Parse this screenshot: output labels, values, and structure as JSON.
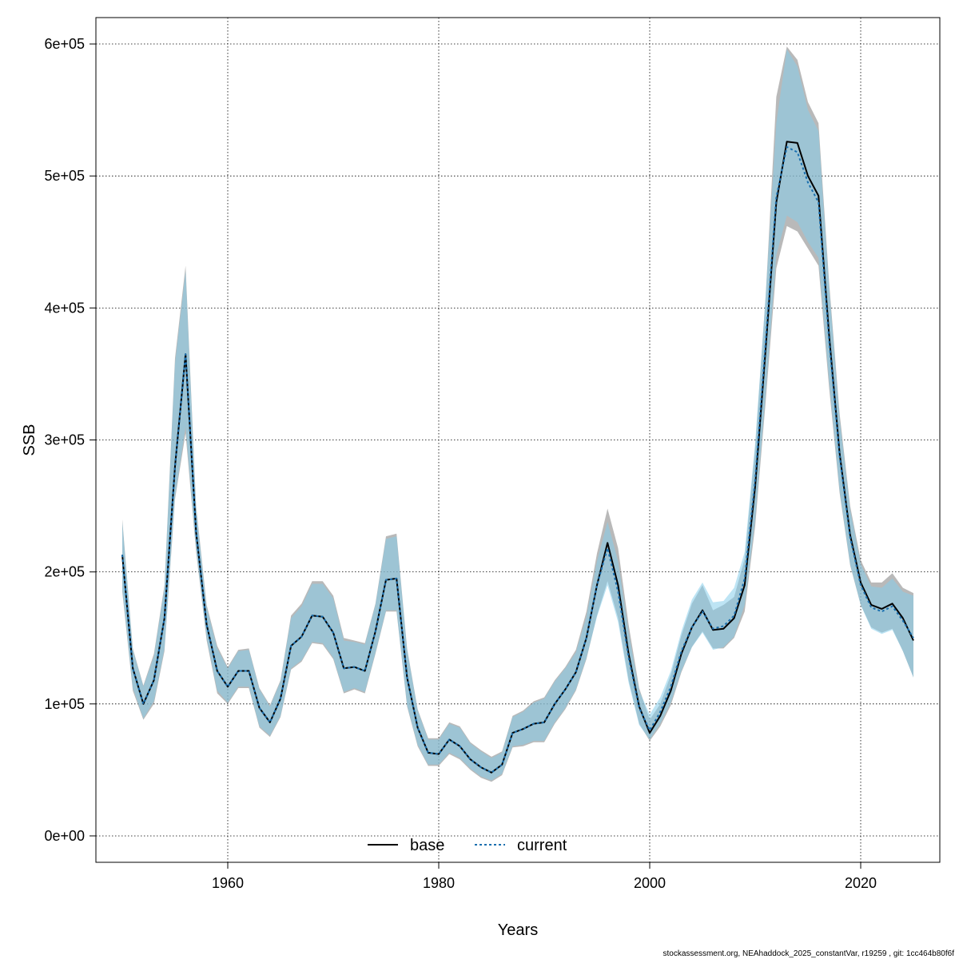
{
  "chart_data": {
    "type": "line",
    "title": "",
    "xlabel": "Years",
    "ylabel": "SSB",
    "xlim": [
      1947.5,
      2027.5
    ],
    "ylim": [
      -20000,
      620000
    ],
    "x_ticks": [
      1960,
      1980,
      2000,
      2020
    ],
    "x_tick_labels": [
      "1960",
      "1980",
      "2000",
      "2020"
    ],
    "y_ticks": [
      0,
      100000,
      200000,
      300000,
      400000,
      500000,
      600000
    ],
    "y_tick_labels": [
      "0e+00",
      "1e+05",
      "2e+05",
      "3e+05",
      "4e+05",
      "5e+05",
      "6e+05"
    ],
    "grid": true,
    "legend_position": "bottom",
    "x": [
      1950,
      1951,
      1952,
      1953,
      1954,
      1955,
      1956,
      1957,
      1958,
      1959,
      1960,
      1961,
      1962,
      1963,
      1964,
      1965,
      1966,
      1967,
      1968,
      1969,
      1970,
      1971,
      1972,
      1973,
      1974,
      1975,
      1976,
      1977,
      1978,
      1979,
      1980,
      1981,
      1982,
      1983,
      1984,
      1985,
      1986,
      1987,
      1988,
      1989,
      1990,
      1991,
      1992,
      1993,
      1994,
      1995,
      1996,
      1997,
      1998,
      1999,
      2000,
      2001,
      2002,
      2003,
      2004,
      2005,
      2006,
      2007,
      2008,
      2009,
      2010,
      2011,
      2012,
      2013,
      2014,
      2015,
      2016,
      2017,
      2018,
      2019,
      2020,
      2021,
      2022,
      2023,
      2024,
      2025
    ],
    "series": [
      {
        "name": "base",
        "color": "#000000",
        "band_color": "#808080",
        "values": [
          213000,
          127000,
          100000,
          118000,
          165000,
          280000,
          365000,
          230000,
          160000,
          125000,
          113000,
          125000,
          125000,
          97000,
          86000,
          104000,
          144000,
          151000,
          167000,
          166000,
          154000,
          127000,
          128000,
          125000,
          155000,
          194000,
          195000,
          120000,
          82000,
          63000,
          62000,
          73000,
          68000,
          58000,
          52000,
          48000,
          54000,
          78000,
          81000,
          85000,
          86000,
          100000,
          111000,
          124000,
          150000,
          190000,
          222000,
          190000,
          138000,
          98000,
          78000,
          91000,
          110000,
          138000,
          158000,
          171000,
          156000,
          157000,
          165000,
          190000,
          265000,
          370000,
          480000,
          526000,
          525000,
          500000,
          485000,
          380000,
          290000,
          228000,
          192000,
          175000,
          172000,
          176000,
          165000,
          148000
        ],
        "lower": [
          185000,
          110000,
          88000,
          100000,
          140000,
          255000,
          305000,
          215000,
          148000,
          108000,
          100000,
          112000,
          112000,
          82000,
          75000,
          90000,
          126000,
          132000,
          146000,
          145000,
          134000,
          108000,
          111000,
          108000,
          138000,
          170000,
          170000,
          98000,
          68000,
          53000,
          53000,
          62000,
          58000,
          50000,
          44000,
          41000,
          46000,
          67000,
          68000,
          71000,
          71000,
          85000,
          96000,
          110000,
          134000,
          167000,
          193000,
          165000,
          118000,
          85000,
          72000,
          83000,
          99000,
          124000,
          143000,
          155000,
          142000,
          142000,
          150000,
          170000,
          235000,
          330000,
          430000,
          462000,
          458000,
          445000,
          432000,
          340000,
          260000,
          205000,
          175000,
          158000,
          154000,
          157000,
          140000,
          120000
        ],
        "upper": [
          240000,
          142000,
          114000,
          138000,
          190000,
          362000,
          432000,
          250000,
          175000,
          144000,
          128000,
          141000,
          142000,
          112000,
          99000,
          118000,
          167000,
          176000,
          193000,
          193000,
          182000,
          150000,
          148000,
          146000,
          176000,
          227000,
          229000,
          142000,
          96000,
          74000,
          74000,
          86000,
          83000,
          71000,
          65000,
          60000,
          64000,
          91000,
          95000,
          102000,
          105000,
          118000,
          128000,
          141000,
          170000,
          214000,
          248000,
          218000,
          160000,
          112000,
          88000,
          100000,
          122000,
          152000,
          176000,
          190000,
          171000,
          175000,
          181000,
          210000,
          295000,
          410000,
          560000,
          598000,
          588000,
          556000,
          540000,
          420000,
          320000,
          250000,
          209000,
          192000,
          192000,
          199000,
          188000,
          184000
        ]
      },
      {
        "name": "current",
        "color": "#1a6faf",
        "band_color": "#87ceeb",
        "values": [
          213000,
          127000,
          100000,
          118000,
          165000,
          280000,
          365000,
          230000,
          160000,
          125000,
          113000,
          125000,
          125000,
          97000,
          86000,
          104000,
          144000,
          151000,
          167000,
          166000,
          154000,
          127000,
          128000,
          125000,
          155000,
          194000,
          195000,
          120000,
          82000,
          63000,
          62000,
          73000,
          68000,
          58000,
          52000,
          48000,
          54000,
          78000,
          81000,
          85000,
          86000,
          100000,
          111000,
          124000,
          150000,
          190000,
          218000,
          185000,
          135000,
          97000,
          80000,
          94000,
          113000,
          140000,
          158000,
          170000,
          157000,
          159000,
          167000,
          195000,
          270000,
          375000,
          484000,
          522000,
          518000,
          495000,
          480000,
          376000,
          288000,
          226000,
          190000,
          173000,
          170000,
          174000,
          163000,
          150000
        ],
        "lower": [
          187000,
          112000,
          89000,
          102000,
          142000,
          257000,
          310000,
          217000,
          150000,
          110000,
          101000,
          113000,
          113000,
          83000,
          76000,
          91000,
          127000,
          133000,
          147000,
          146000,
          135000,
          109000,
          112000,
          109000,
          139000,
          171000,
          171000,
          99000,
          69000,
          54000,
          54000,
          63000,
          59000,
          51000,
          45000,
          42000,
          47000,
          68000,
          69000,
          72000,
          72000,
          86000,
          97000,
          111000,
          135000,
          166000,
          190000,
          162000,
          116000,
          84000,
          73000,
          85000,
          101000,
          125000,
          143000,
          154000,
          141000,
          143000,
          151000,
          175000,
          240000,
          336000,
          440000,
          470000,
          465000,
          450000,
          438000,
          345000,
          262000,
          206000,
          175000,
          157000,
          153000,
          156000,
          140000,
          120000
        ],
        "upper": [
          238000,
          141000,
          113000,
          136000,
          188000,
          358000,
          428000,
          248000,
          173000,
          142000,
          127000,
          140000,
          141000,
          111000,
          98000,
          117000,
          165000,
          174000,
          191000,
          191000,
          180000,
          148000,
          147000,
          145000,
          175000,
          225000,
          227000,
          141000,
          95000,
          73000,
          73000,
          85000,
          82000,
          70000,
          64000,
          59000,
          63000,
          90000,
          94000,
          101000,
          104000,
          117000,
          127000,
          139000,
          166000,
          208000,
          238000,
          208000,
          154000,
          110000,
          92000,
          105000,
          125000,
          155000,
          179000,
          192000,
          177000,
          178000,
          188000,
          215000,
          298000,
          410000,
          540000,
          596000,
          583000,
          550000,
          534000,
          416000,
          316000,
          247000,
          206000,
          189000,
          188000,
          195000,
          185000,
          182000
        ]
      }
    ]
  },
  "footer": {
    "text": "stockassessment.org, NEAhaddock_2025_constantVar, r19259 , git: 1cc464b80f6f"
  }
}
